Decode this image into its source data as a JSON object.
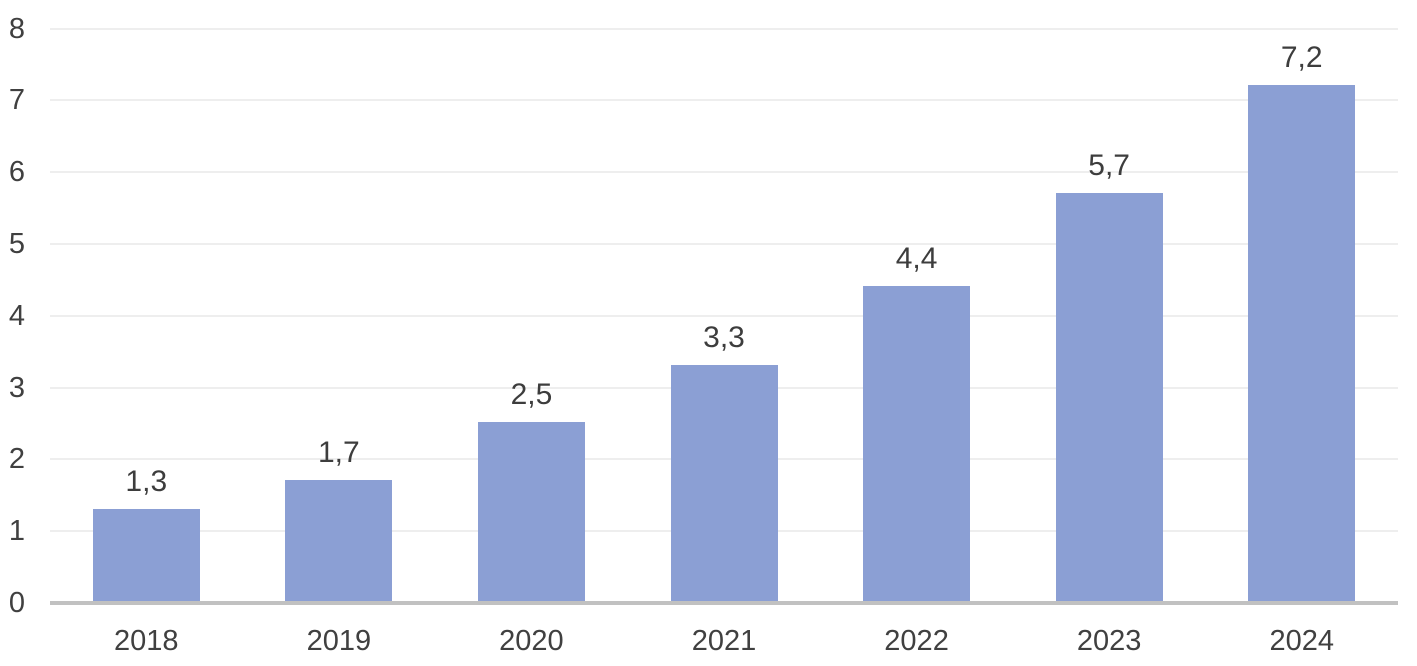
{
  "chart_data": {
    "type": "bar",
    "categories": [
      "2018",
      "2019",
      "2020",
      "2021",
      "2022",
      "2023",
      "2024"
    ],
    "values": [
      1.3,
      1.7,
      2.5,
      3.3,
      4.4,
      5.7,
      7.2
    ],
    "data_labels": [
      "1,3",
      "1,7",
      "2,5",
      "3,3",
      "4,4",
      "5,7",
      "7,2"
    ],
    "y_ticks": [
      0,
      1,
      2,
      3,
      4,
      5,
      6,
      7,
      8
    ],
    "y_tick_labels": [
      "0",
      "1",
      "2",
      "3",
      "4",
      "5",
      "6",
      "7",
      "8"
    ],
    "ylim": [
      0,
      8
    ],
    "title": "",
    "xlabel": "",
    "ylabel": "",
    "grid": true,
    "legend_position": "none",
    "colors": {
      "bar_fill": "#8B9FD4",
      "gridline": "#EEEEEE",
      "baseline": "#C1C1C1",
      "tick_label_text": "#404040",
      "data_label_text": "#3D3D3D",
      "background": "#FFFFFF"
    }
  }
}
